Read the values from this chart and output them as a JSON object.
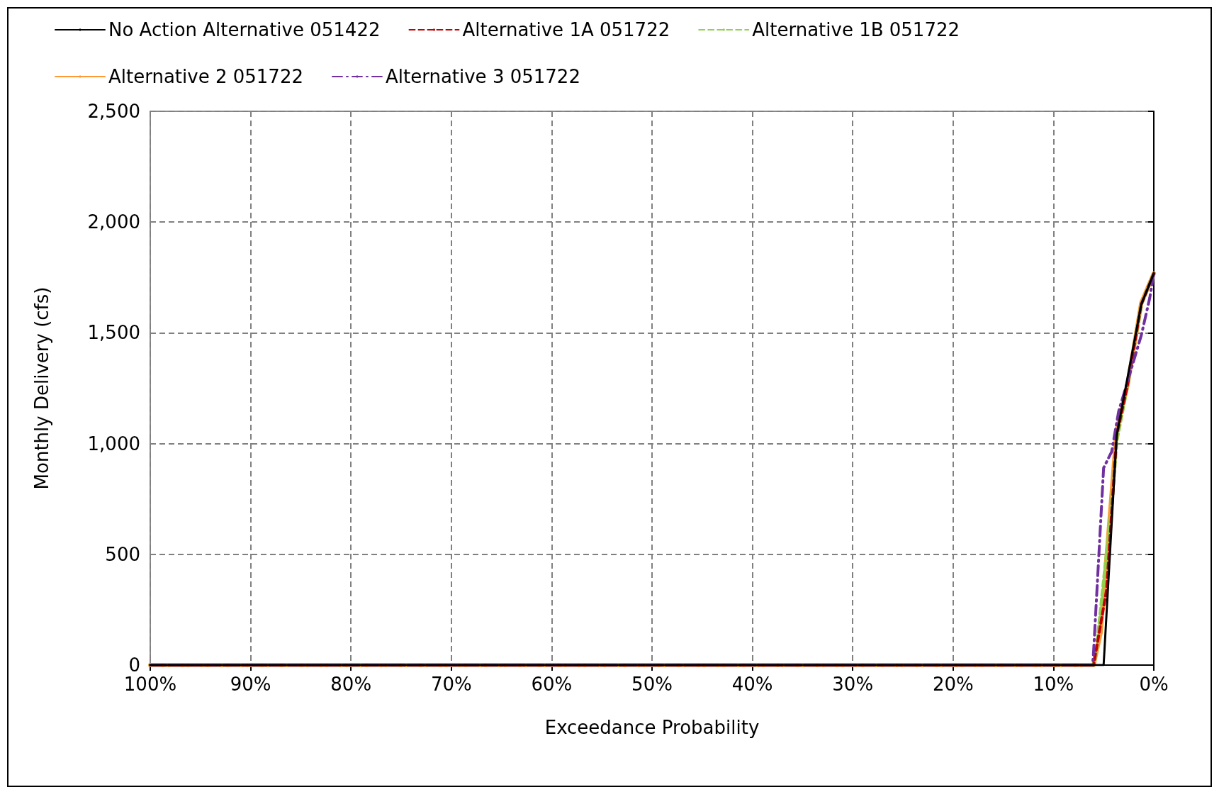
{
  "chart_data": {
    "type": "line",
    "xlabel": "Exceedance Probability",
    "ylabel": "Monthly Delivery (cfs)",
    "xlim": [
      100,
      0
    ],
    "xticks": [
      {
        "value": 100,
        "label": "100%"
      },
      {
        "value": 90,
        "label": "90%"
      },
      {
        "value": 80,
        "label": "80%"
      },
      {
        "value": 70,
        "label": "70%"
      },
      {
        "value": 60,
        "label": "60%"
      },
      {
        "value": 50,
        "label": "50%"
      },
      {
        "value": 40,
        "label": "40%"
      },
      {
        "value": 30,
        "label": "30%"
      },
      {
        "value": 20,
        "label": "20%"
      },
      {
        "value": 10,
        "label": "10%"
      },
      {
        "value": 0,
        "label": "0%"
      }
    ],
    "ylim": [
      0,
      2500
    ],
    "yticks": [
      {
        "value": 0,
        "label": "0"
      },
      {
        "value": 500,
        "label": "500"
      },
      {
        "value": 1000,
        "label": "1,000"
      },
      {
        "value": 1500,
        "label": "1,500"
      },
      {
        "value": 2000,
        "label": "2,000"
      },
      {
        "value": 2500,
        "label": "2,500"
      }
    ],
    "grid": true,
    "legend": "top",
    "marker": "none",
    "series": [
      {
        "name": "No Action Alternative 051422",
        "color": "#000000",
        "line_style": "solid",
        "x": [
          100,
          5.0,
          3.7,
          1.25,
          0
        ],
        "values": [
          0,
          0,
          1037,
          1628,
          1768
        ]
      },
      {
        "name": "Alternative 1A 051722",
        "color": "#c00000",
        "line_style": "dashed",
        "x": [
          100,
          6.0,
          4.7,
          3.7,
          2.6,
          1.25,
          0
        ],
        "values": [
          0,
          0,
          341,
          1037,
          1268,
          1628,
          1768
        ]
      },
      {
        "name": "Alternative 1B 051722",
        "color": "#92d050",
        "line_style": "dashed",
        "x": [
          100,
          6.0,
          5.7,
          4.2,
          3.7,
          2.6,
          1.25,
          0
        ],
        "values": [
          0,
          0,
          73,
          720,
          1012,
          1268,
          1628,
          1768
        ]
      },
      {
        "name": "Alternative 2 051722",
        "color": "#ff9933",
        "line_style": "solid",
        "x": [
          100,
          6.0,
          5.3,
          3.7,
          2.6,
          1.25,
          0
        ],
        "values": [
          0,
          0,
          146,
          1060,
          1268,
          1634,
          1768
        ]
      },
      {
        "name": "Alternative 3 051722",
        "color": "#7030a0",
        "line_style": "dotted",
        "x": [
          100,
          6.1,
          6.0,
          5.0,
          4.2,
          3.5,
          1.25,
          0.4,
          0
        ],
        "values": [
          0,
          0,
          60,
          890,
          963,
          1146,
          1488,
          1658,
          1768
        ]
      }
    ]
  }
}
